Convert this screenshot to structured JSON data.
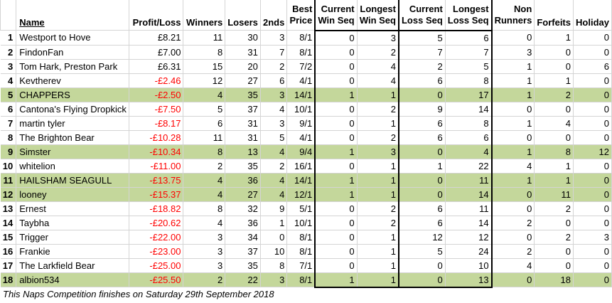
{
  "headers": {
    "num": "",
    "name": "Name",
    "profit_loss": "Profit/Loss",
    "winners": "Winners",
    "losers": "Losers",
    "seconds": "2nds",
    "best_price": [
      "Best",
      "Price"
    ],
    "current_win_seq": [
      "Current",
      "Win Seq"
    ],
    "longest_win_seq": [
      "Longest",
      "Win Seq"
    ],
    "current_loss_seq": [
      "Current",
      "Loss Seq"
    ],
    "longest_loss_seq": [
      "Longest",
      "Loss Seq"
    ],
    "non_runners": [
      "Non",
      "Runners"
    ],
    "forfeits": "Forfeits",
    "holiday": "Holiday"
  },
  "rows": [
    {
      "n": "1",
      "name": "Westport to Hove",
      "pl": "£8.21",
      "w": "11",
      "l": "30",
      "s": "3",
      "bp": "8/1",
      "cws": "0",
      "lws": "3",
      "cls": "5",
      "lls": "6",
      "nr": "0",
      "f": "1",
      "h": "0",
      "hl": false,
      "neg": false
    },
    {
      "n": "2",
      "name": "FindonFan",
      "pl": "£7.00",
      "w": "8",
      "l": "31",
      "s": "7",
      "bp": "8/1",
      "cws": "0",
      "lws": "2",
      "cls": "7",
      "lls": "7",
      "nr": "3",
      "f": "0",
      "h": "0",
      "hl": false,
      "neg": false
    },
    {
      "n": "3",
      "name": "Tom Hark, Preston Park",
      "pl": "£6.31",
      "w": "15",
      "l": "20",
      "s": "2",
      "bp": "7/2",
      "cws": "0",
      "lws": "4",
      "cls": "2",
      "lls": "5",
      "nr": "1",
      "f": "0",
      "h": "6",
      "hl": false,
      "neg": false
    },
    {
      "n": "4",
      "name": "Kevtherev",
      "pl": "-£2.46",
      "w": "12",
      "l": "27",
      "s": "6",
      "bp": "4/1",
      "cws": "0",
      "lws": "4",
      "cls": "6",
      "lls": "8",
      "nr": "1",
      "f": "1",
      "h": "0",
      "hl": false,
      "neg": true
    },
    {
      "n": "5",
      "name": "CHAPPERS",
      "pl": "-£2.50",
      "w": "4",
      "l": "35",
      "s": "3",
      "bp": "14/1",
      "cws": "1",
      "lws": "1",
      "cls": "0",
      "lls": "17",
      "nr": "1",
      "f": "2",
      "h": "0",
      "hl": true,
      "neg": true
    },
    {
      "n": "6",
      "name": "Cantona's Flying Dropkick",
      "pl": "-£7.50",
      "w": "5",
      "l": "37",
      "s": "4",
      "bp": "10/1",
      "cws": "0",
      "lws": "2",
      "cls": "9",
      "lls": "14",
      "nr": "0",
      "f": "0",
      "h": "0",
      "hl": false,
      "neg": true
    },
    {
      "n": "7",
      "name": "martin tyler",
      "pl": "-£8.17",
      "w": "6",
      "l": "31",
      "s": "3",
      "bp": "9/1",
      "cws": "0",
      "lws": "1",
      "cls": "6",
      "lls": "8",
      "nr": "1",
      "f": "4",
      "h": "0",
      "hl": false,
      "neg": true
    },
    {
      "n": "8",
      "name": "The Brighton Bear",
      "pl": "-£10.28",
      "w": "11",
      "l": "31",
      "s": "5",
      "bp": "4/1",
      "cws": "0",
      "lws": "2",
      "cls": "6",
      "lls": "6",
      "nr": "0",
      "f": "0",
      "h": "0",
      "hl": false,
      "neg": true
    },
    {
      "n": "9",
      "name": "Simster",
      "pl": "-£10.34",
      "w": "8",
      "l": "13",
      "s": "4",
      "bp": "9/4",
      "cws": "1",
      "lws": "3",
      "cls": "0",
      "lls": "4",
      "nr": "1",
      "f": "8",
      "h": "12",
      "hl": true,
      "neg": true
    },
    {
      "n": "10",
      "name": "whitelion",
      "pl": "-£11.00",
      "w": "2",
      "l": "35",
      "s": "2",
      "bp": "16/1",
      "cws": "0",
      "lws": "1",
      "cls": "1",
      "lls": "22",
      "nr": "4",
      "f": "1",
      "h": "0",
      "hl": false,
      "neg": true
    },
    {
      "n": "11",
      "name": "HAILSHAM SEAGULL",
      "pl": "-£13.75",
      "w": "4",
      "l": "36",
      "s": "4",
      "bp": "14/1",
      "cws": "1",
      "lws": "1",
      "cls": "0",
      "lls": "11",
      "nr": "1",
      "f": "1",
      "h": "0",
      "hl": true,
      "neg": true
    },
    {
      "n": "12",
      "name": "looney",
      "pl": "-£15.37",
      "w": "4",
      "l": "27",
      "s": "4",
      "bp": "12/1",
      "cws": "1",
      "lws": "1",
      "cls": "0",
      "lls": "14",
      "nr": "0",
      "f": "11",
      "h": "0",
      "hl": true,
      "neg": true
    },
    {
      "n": "13",
      "name": "Ernest",
      "pl": "-£18.82",
      "w": "8",
      "l": "32",
      "s": "9",
      "bp": "5/1",
      "cws": "0",
      "lws": "2",
      "cls": "6",
      "lls": "11",
      "nr": "0",
      "f": "2",
      "h": "0",
      "hl": false,
      "neg": true
    },
    {
      "n": "14",
      "name": "Taybha",
      "pl": "-£20.62",
      "w": "4",
      "l": "36",
      "s": "1",
      "bp": "10/1",
      "cws": "0",
      "lws": "2",
      "cls": "6",
      "lls": "14",
      "nr": "2",
      "f": "0",
      "h": "0",
      "hl": false,
      "neg": true
    },
    {
      "n": "15",
      "name": "Trigger",
      "pl": "-£22.00",
      "w": "3",
      "l": "34",
      "s": "0",
      "bp": "8/1",
      "cws": "0",
      "lws": "1",
      "cls": "12",
      "lls": "12",
      "nr": "0",
      "f": "2",
      "h": "3",
      "hl": false,
      "neg": true
    },
    {
      "n": "16",
      "name": "Frankie",
      "pl": "-£23.00",
      "w": "3",
      "l": "37",
      "s": "10",
      "bp": "8/1",
      "cws": "0",
      "lws": "1",
      "cls": "5",
      "lls": "24",
      "nr": "2",
      "f": "0",
      "h": "0",
      "hl": false,
      "neg": true
    },
    {
      "n": "17",
      "name": "The Larkfield Bear",
      "pl": "-£25.00",
      "w": "3",
      "l": "35",
      "s": "8",
      "bp": "7/1",
      "cws": "0",
      "lws": "1",
      "cls": "0",
      "lls": "10",
      "nr": "4",
      "f": "0",
      "h": "0",
      "hl": false,
      "neg": true
    },
    {
      "n": "18",
      "name": "albion534",
      "pl": "-£25.50",
      "w": "2",
      "l": "22",
      "s": "3",
      "bp": "8/1",
      "cws": "1",
      "lws": "1",
      "cls": "0",
      "lls": "13",
      "nr": "0",
      "f": "18",
      "h": "0",
      "hl": true,
      "neg": true
    }
  ],
  "colors": {
    "highlight": "#c4d79b",
    "negative": "#ff0000"
  },
  "footer": "This Naps Competition finishes on Saturday 29th September 2018"
}
